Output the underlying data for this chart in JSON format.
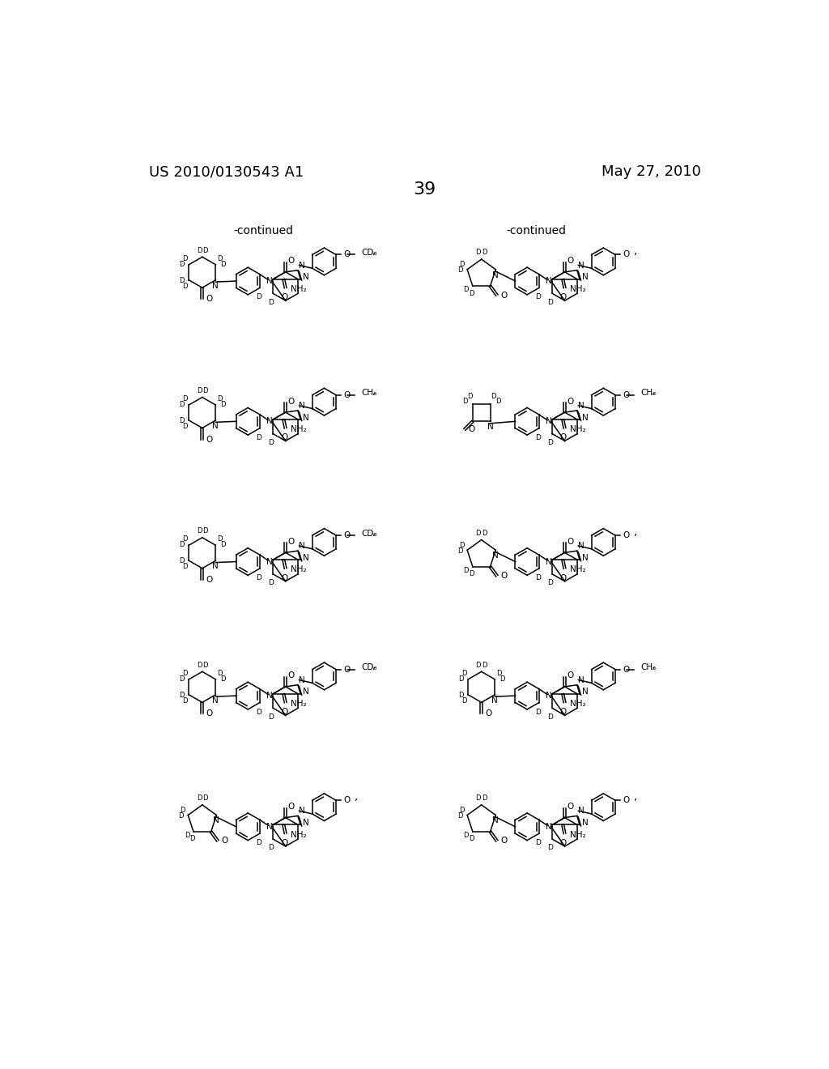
{
  "page_header_left": "US 2010/0130543 A1",
  "page_header_right": "May 27, 2010",
  "page_number": "39",
  "background_color": "#ffffff",
  "text_color": "#000000",
  "structures": [
    {
      "col": 0,
      "row": 0,
      "ring_size": 6,
      "sub": "OCD3",
      "sub_suffix": ","
    },
    {
      "col": 1,
      "row": 0,
      "ring_size": 5,
      "sub": "O",
      "sub_suffix": ","
    },
    {
      "col": 0,
      "row": 1,
      "ring_size": 6,
      "sub": "OCH3",
      "sub_suffix": ","
    },
    {
      "col": 1,
      "row": 1,
      "ring_size": 4,
      "sub": "OCH3",
      "sub_suffix": ","
    },
    {
      "col": 0,
      "row": 2,
      "ring_size": 6,
      "sub": "OCD3",
      "sub_suffix": ","
    },
    {
      "col": 1,
      "row": 2,
      "ring_size": 5,
      "sub": "O",
      "sub_suffix": ","
    },
    {
      "col": 0,
      "row": 3,
      "ring_size": 6,
      "sub": "OCD3",
      "sub_suffix": ","
    },
    {
      "col": 1,
      "row": 3,
      "ring_size": 6,
      "sub": "OCH3",
      "sub_suffix": ","
    },
    {
      "col": 0,
      "row": 4,
      "ring_size": 5,
      "sub": "O",
      "sub_suffix": ","
    },
    {
      "col": 1,
      "row": 4,
      "ring_size": 5,
      "sub": "O",
      "sub_suffix": ","
    }
  ]
}
